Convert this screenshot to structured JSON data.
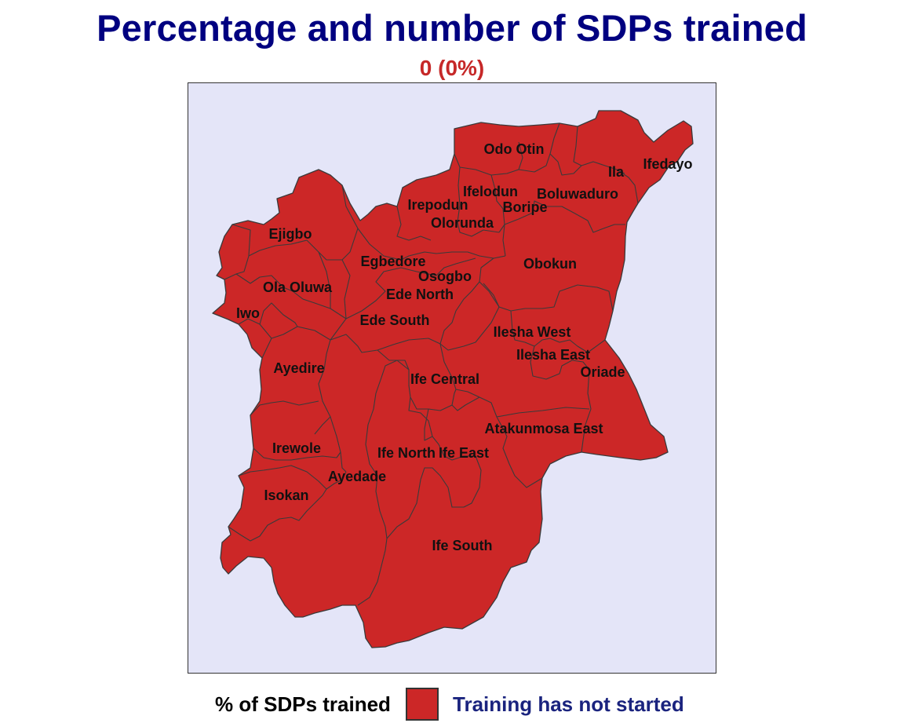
{
  "title": "Percentage and number of SDPs trained",
  "subtitle": "0 (0%)",
  "colors": {
    "title": "#000080",
    "subtitle": "#c62828",
    "region_fill": "#cc2727",
    "region_border": "#3a3a3a",
    "map_background": "#e4e5f8"
  },
  "lgas": [
    {
      "label": "Odo Otin",
      "status": "Training has not started"
    },
    {
      "label": "Ila",
      "status": "Training has not started"
    },
    {
      "label": "Ifedayo",
      "status": "Training has not started"
    },
    {
      "label": "Ifelodun",
      "status": "Training has not started"
    },
    {
      "label": "Boluwaduro",
      "status": "Training has not started"
    },
    {
      "label": "Irepodun",
      "status": "Training has not started"
    },
    {
      "label": "Boripe",
      "status": "Training has not started"
    },
    {
      "label": "Olorunda",
      "status": "Training has not started"
    },
    {
      "label": "Ejigbo",
      "status": "Training has not started"
    },
    {
      "label": "Egbedore",
      "status": "Training has not started"
    },
    {
      "label": "Obokun",
      "status": "Training has not started"
    },
    {
      "label": "Osogbo",
      "status": "Training has not started"
    },
    {
      "label": "Ola Oluwa",
      "status": "Training has not started"
    },
    {
      "label": "Ede North",
      "status": "Training has not started"
    },
    {
      "label": "Iwo",
      "status": "Training has not started"
    },
    {
      "label": "Ede South",
      "status": "Training has not started"
    },
    {
      "label": "Ilesha West",
      "status": "Training has not started"
    },
    {
      "label": "Ilesha East",
      "status": "Training has not started"
    },
    {
      "label": "Ayedire",
      "status": "Training has not started"
    },
    {
      "label": "Oriade",
      "status": "Training has not started"
    },
    {
      "label": "Ife Central",
      "status": "Training has not started"
    },
    {
      "label": "Atakunmosa East",
      "status": "Training has not started"
    },
    {
      "label": "Irewole",
      "status": "Training has not started"
    },
    {
      "label": "Ife North",
      "status": "Training has not started"
    },
    {
      "label": "Ife East",
      "status": "Training has not started"
    },
    {
      "label": "Ayedade",
      "status": "Training has not started"
    },
    {
      "label": "Isokan",
      "status": "Training has not started"
    },
    {
      "label": "Ife South",
      "status": "Training has not started"
    }
  ],
  "legend": {
    "title": "% of SDPs trained",
    "items": [
      {
        "label": "Training has not started",
        "color": "#cc2727"
      }
    ]
  }
}
